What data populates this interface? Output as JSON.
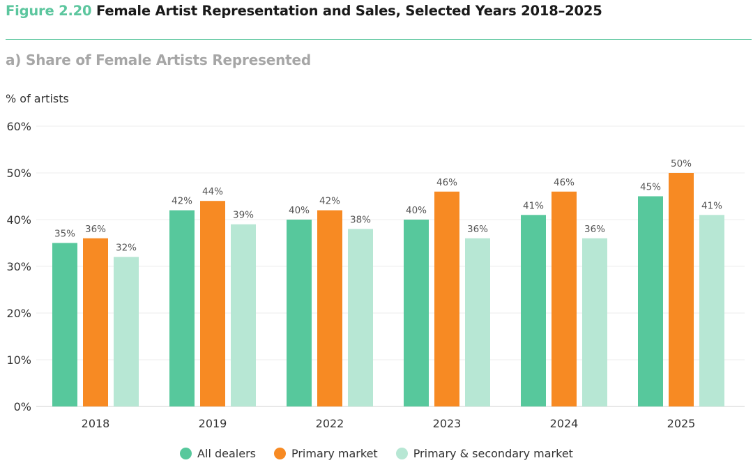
{
  "header": {
    "figure_number": "Figure 2.20",
    "title": "Female Artist Representation and Sales, Selected Years 2018–2025"
  },
  "panel_title": "a) Share of Female Artists Represented",
  "colors": {
    "accent": "#5cc69e",
    "all_dealers": "#57c89c",
    "primary_market": "#f78a23",
    "primary_secondary_market": "#b7e7d4"
  },
  "chart_data": {
    "type": "bar",
    "title": "a) Share of Female Artists Represented",
    "xlabel": "",
    "ylabel": "% of artists",
    "ylim": [
      0,
      60
    ],
    "yticks": [
      0,
      10,
      20,
      30,
      40,
      50,
      60
    ],
    "ytick_labels": [
      "0%",
      "10%",
      "20%",
      "30%",
      "40%",
      "50%",
      "60%"
    ],
    "grid": true,
    "legend_position": "bottom",
    "categories": [
      "2018",
      "2019",
      "2022",
      "2023",
      "2024",
      "2025"
    ],
    "series": [
      {
        "name": "All dealers",
        "color_key": "all_dealers",
        "values": [
          35,
          42,
          40,
          40,
          41,
          45
        ],
        "labels": [
          "35%",
          "42%",
          "40%",
          "40%",
          "41%",
          "45%"
        ]
      },
      {
        "name": "Primary market",
        "color_key": "primary_market",
        "values": [
          36,
          44,
          42,
          46,
          46,
          50
        ],
        "labels": [
          "36%",
          "44%",
          "42%",
          "46%",
          "46%",
          "50%"
        ]
      },
      {
        "name": "Primary & secondary market",
        "color_key": "primary_secondary_market",
        "values": [
          32,
          39,
          38,
          36,
          36,
          41
        ],
        "labels": [
          "32%",
          "39%",
          "38%",
          "36%",
          "36%",
          "41%"
        ]
      }
    ]
  }
}
